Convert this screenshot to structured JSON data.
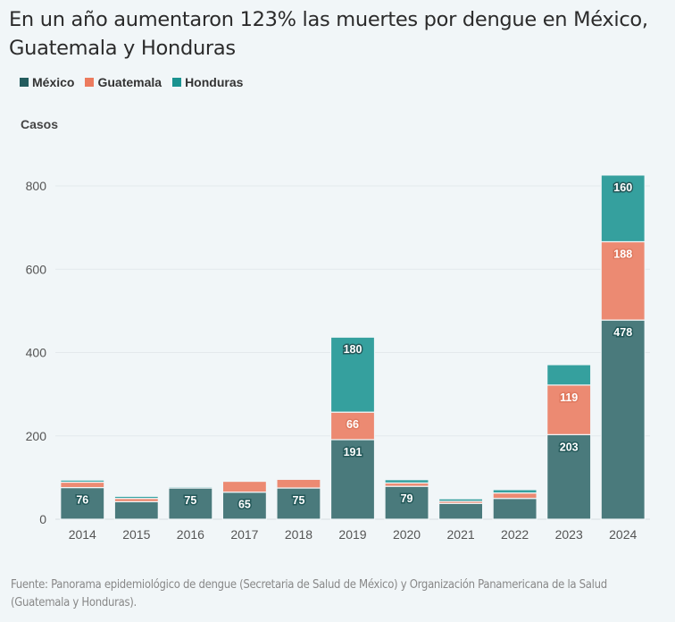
{
  "title": "En un año aumentaron 123% las muertes por dengue en México, Guatemala y Honduras",
  "source": "Fuente: Panorama epidemiológico de dengue (Secretaria de Salud de México) y Organización Panamericana de la Salud (Guatemala y Honduras).",
  "chart_data": {
    "type": "bar",
    "stacked": true,
    "title": "En un año aumentaron 123% las muertes por dengue en México, Guatemala y Honduras",
    "xlabel": "",
    "ylabel": "Casos",
    "ylim": [
      0,
      830
    ],
    "yticks": [
      0,
      200,
      400,
      600,
      800
    ],
    "grid": true,
    "legend_position": "top-left",
    "categories": [
      "2014",
      "2015",
      "2016",
      "2017",
      "2018",
      "2019",
      "2020",
      "2021",
      "2022",
      "2023",
      "2024"
    ],
    "series": [
      {
        "name": "México",
        "color": "#4a7a7c",
        "values": [
          76,
          42,
          75,
          65,
          75,
          191,
          79,
          38,
          50,
          203,
          478
        ],
        "labels": [
          "76",
          "",
          "75",
          "65",
          "75",
          "191",
          "79",
          "",
          "",
          "203",
          "478"
        ]
      },
      {
        "name": "Guatemala",
        "color": "#ec8a72",
        "values": [
          13,
          8,
          0,
          26,
          21,
          66,
          8,
          5,
          13,
          119,
          188
        ],
        "labels": [
          "",
          "",
          "",
          "",
          "",
          "66",
          "",
          "",
          "",
          "119",
          "188"
        ]
      },
      {
        "name": "Honduras",
        "color": "#35a09e",
        "values": [
          5,
          5,
          3,
          0,
          2,
          180,
          8,
          6,
          8,
          49,
          160
        ],
        "labels": [
          "",
          "",
          "",
          "",
          "",
          "180",
          "",
          "",
          "",
          "",
          "160"
        ]
      }
    ]
  }
}
